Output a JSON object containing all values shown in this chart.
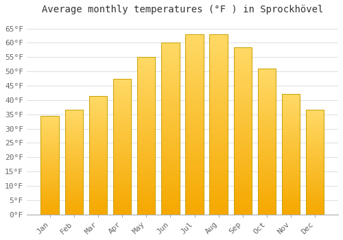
{
  "title": "Average monthly temperatures (°F ) in Sprockhövel",
  "months": [
    "Jan",
    "Feb",
    "Mar",
    "Apr",
    "May",
    "Jun",
    "Jul",
    "Aug",
    "Sep",
    "Oct",
    "Nov",
    "Dec"
  ],
  "values": [
    34.5,
    36.5,
    41.5,
    47.5,
    55.0,
    60.0,
    63.0,
    63.0,
    58.5,
    51.0,
    42.0,
    36.5
  ],
  "bar_color_bottom": "#F5A800",
  "bar_color_top": "#FFD966",
  "bar_edge_color": "#C8A000",
  "bar_width": 0.75,
  "ylim": [
    0,
    68
  ],
  "yticks": [
    0,
    5,
    10,
    15,
    20,
    25,
    30,
    35,
    40,
    45,
    50,
    55,
    60,
    65
  ],
  "ytick_labels": [
    "0°F",
    "5°F",
    "10°F",
    "15°F",
    "20°F",
    "25°F",
    "30°F",
    "35°F",
    "40°F",
    "45°F",
    "50°F",
    "55°F",
    "60°F",
    "65°F"
  ],
  "grid_color": "#d8d8d8",
  "background_color": "#ffffff",
  "title_fontsize": 10,
  "tick_fontsize": 8
}
